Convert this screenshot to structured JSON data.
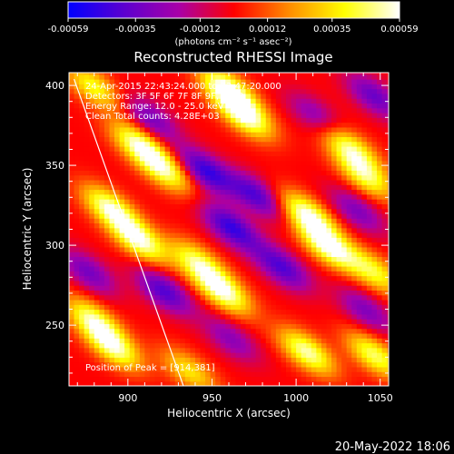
{
  "chart_data": {
    "type": "heatmap",
    "title": "Reconstructed RHESSI Image",
    "xlabel": "Heliocentric X (arcsec)",
    "ylabel": "Heliocentric Y (arcsec)",
    "xlim": [
      865,
      1055
    ],
    "ylim": [
      212,
      408
    ],
    "x_ticks": [
      900,
      950,
      1000,
      1050
    ],
    "y_ticks": [
      250,
      300,
      350,
      400
    ],
    "colorbar": {
      "range": [
        -0.00059,
        0.00059
      ],
      "ticks": [
        "-0.00059",
        "-0.00035",
        "-0.00012",
        "0.00012",
        "0.00035",
        "0.00059"
      ],
      "tick_values": [
        -0.00059,
        -0.00035,
        -0.00012,
        0.00012,
        0.00035,
        0.00059
      ],
      "label": "(photons cm⁻² s⁻¹ asec⁻²)",
      "colormap": [
        "#0000ff",
        "#5b00d0",
        "#a800a8",
        "#ff0000",
        "#ff8c00",
        "#ffff00",
        "#ffffff"
      ]
    },
    "annotations": [
      "24-Apr-2015 22:43:24.000 to 22:47:20.000",
      "Detectors: 3F 5F 6F 7F 8F 9F, Att 0",
      "Energy Range: 12.0 - 25.0 keV",
      "Clean    Total counts: 4.28E+03"
    ],
    "peak_label": "Position of Peak = [914,381]",
    "limb_line": [
      [
        868,
        404
      ],
      [
        933,
        212
      ]
    ],
    "blobs": [
      {
        "x": 958,
        "y": 396,
        "val": 1.0
      },
      {
        "x": 968,
        "y": 380,
        "val": 0.95
      },
      {
        "x": 905,
        "y": 362,
        "val": 0.85
      },
      {
        "x": 920,
        "y": 346,
        "val": 0.8
      },
      {
        "x": 1030,
        "y": 360,
        "val": 0.8
      },
      {
        "x": 1040,
        "y": 342,
        "val": 0.75
      },
      {
        "x": 888,
        "y": 322,
        "val": 0.9
      },
      {
        "x": 905,
        "y": 302,
        "val": 0.95
      },
      {
        "x": 1005,
        "y": 318,
        "val": 0.95
      },
      {
        "x": 1018,
        "y": 298,
        "val": 1.0
      },
      {
        "x": 1045,
        "y": 282,
        "val": 0.7
      },
      {
        "x": 940,
        "y": 288,
        "val": 0.75
      },
      {
        "x": 955,
        "y": 270,
        "val": 0.95
      },
      {
        "x": 878,
        "y": 252,
        "val": 0.8
      },
      {
        "x": 890,
        "y": 235,
        "val": 0.85
      },
      {
        "x": 1005,
        "y": 232,
        "val": 0.9
      },
      {
        "x": 1045,
        "y": 230,
        "val": 0.8
      },
      {
        "x": 935,
        "y": 220,
        "val": 0.6
      },
      {
        "x": 878,
        "y": 398,
        "val": 0.7
      },
      {
        "x": 945,
        "y": 345,
        "val": -0.8
      },
      {
        "x": 912,
        "y": 378,
        "val": -0.55
      },
      {
        "x": 975,
        "y": 330,
        "val": -0.7
      },
      {
        "x": 1045,
        "y": 392,
        "val": -0.6
      },
      {
        "x": 1010,
        "y": 380,
        "val": -0.45
      },
      {
        "x": 960,
        "y": 310,
        "val": -0.8
      },
      {
        "x": 1035,
        "y": 320,
        "val": -0.5
      },
      {
        "x": 920,
        "y": 270,
        "val": -0.7
      },
      {
        "x": 875,
        "y": 282,
        "val": -0.55
      },
      {
        "x": 990,
        "y": 285,
        "val": -0.7
      },
      {
        "x": 1040,
        "y": 258,
        "val": -0.5
      },
      {
        "x": 960,
        "y": 240,
        "val": -0.45
      }
    ]
  },
  "footer_date": "20-May-2022 18:06"
}
